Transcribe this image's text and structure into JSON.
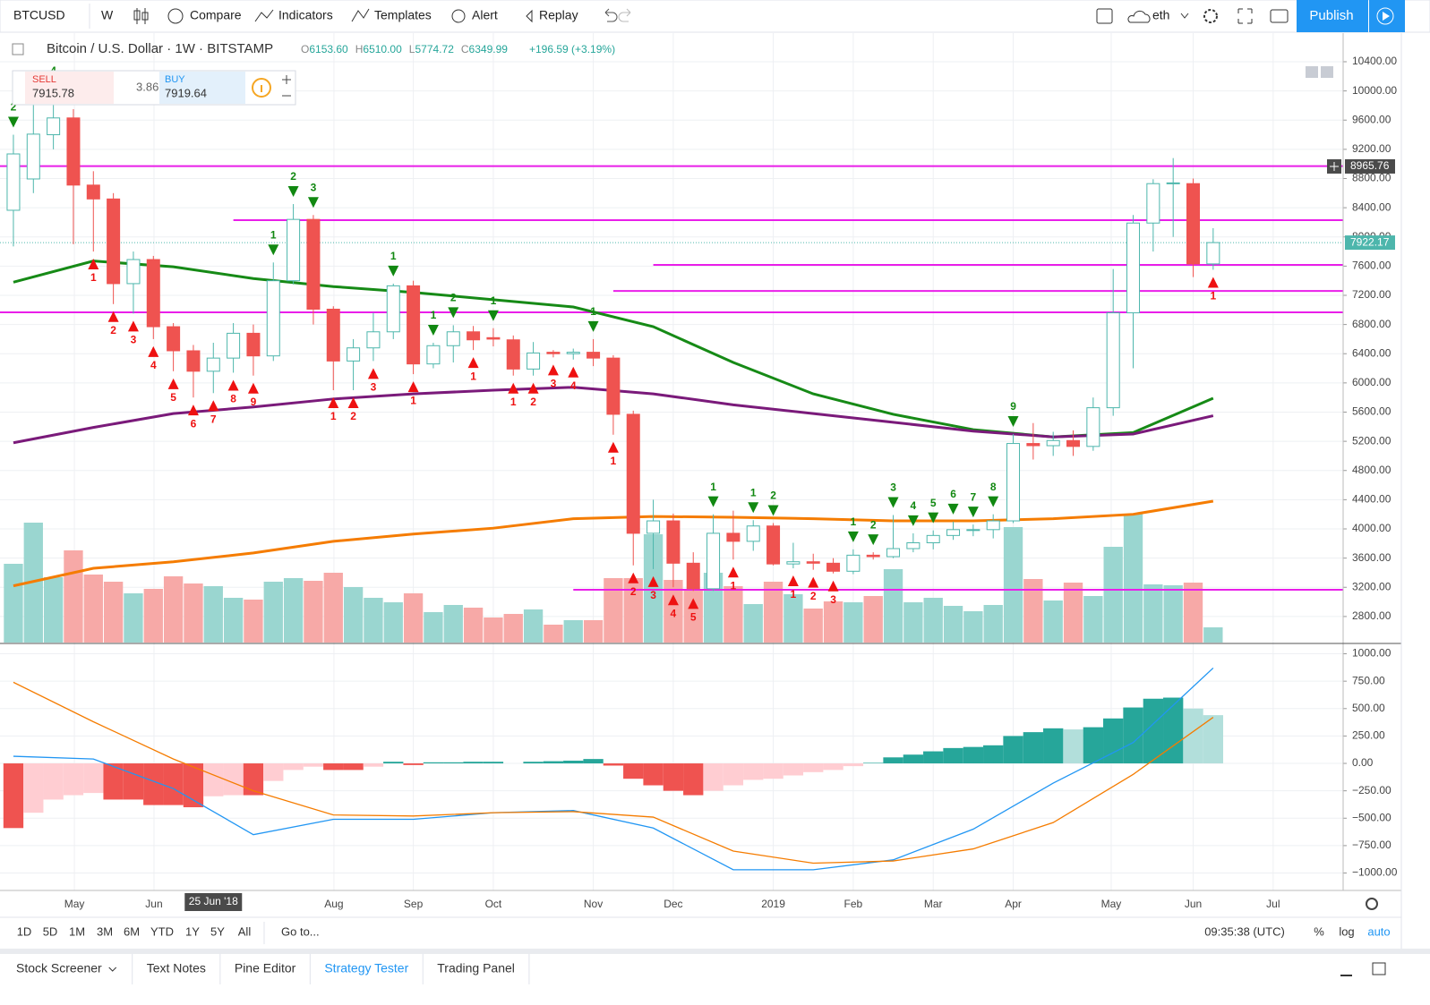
{
  "toolbar": {
    "symbol": "BTCUSD",
    "interval": "W",
    "compare": "Compare",
    "indicators": "Indicators",
    "templates": "Templates",
    "alert": "Alert",
    "replay": "Replay",
    "layout": "eth",
    "publish": "Publish"
  },
  "legend": {
    "title": "Bitcoin / U.S. Dollar · 1W · BITSTAMP",
    "ohlc": [
      {
        "key": "O",
        "value": "6153.60"
      },
      {
        "key": "H",
        "value": "6510.00"
      },
      {
        "key": "L",
        "value": "5774.72"
      },
      {
        "key": "C",
        "value": "6349.99"
      }
    ],
    "change": "+196.59 (+3.19%)"
  },
  "trade": {
    "sell_label": "SELL",
    "sell_price": "7915.78",
    "spread": "3.86",
    "buy_label": "BUY",
    "buy_price": "7919.64"
  },
  "chart_data": {
    "type": "candlestick",
    "open": [
      8365,
      8794,
      9400,
      9630,
      8710,
      8520,
      7360,
      7690,
      6770,
      6440,
      6160,
      6340,
      6680,
      6370,
      7400,
      8240,
      7010,
      6300,
      6480,
      6700,
      7330,
      6260,
      6510,
      6700,
      6620,
      6590,
      6190,
      6420,
      6400,
      6420,
      6340,
      5570,
      3940,
      4110,
      3530,
      3180,
      3940,
      3830,
      4040,
      3520,
      3550,
      3530,
      3420,
      3640,
      3620,
      3730,
      3810,
      3910,
      3980,
      3990,
      4110,
      5170,
      5140,
      5210,
      5130,
      5660,
      6960,
      8190,
      8730,
      8730,
      7630
    ],
    "high": [
      9400,
      9900,
      9900,
      9750,
      8900,
      8600,
      7800,
      7740,
      6820,
      6520,
      6550,
      6820,
      6800,
      7650,
      8450,
      8300,
      7050,
      6600,
      6960,
      7360,
      7400,
      6550,
      6790,
      6780,
      6750,
      6650,
      6560,
      6450,
      6470,
      6600,
      6380,
      5620,
      4400,
      4210,
      3680,
      4200,
      4250,
      4120,
      4080,
      3810,
      3660,
      3600,
      3720,
      3680,
      4190,
      3940,
      3980,
      4100,
      4060,
      4200,
      5300,
      5450,
      5330,
      5350,
      5800,
      7560,
      8300,
      8790,
      9080,
      8800,
      8120
    ],
    "low": [
      7870,
      8600,
      9200,
      7900,
      7800,
      7080,
      6950,
      6600,
      6160,
      5800,
      5860,
      6140,
      6100,
      6300,
      7350,
      6800,
      5900,
      5900,
      6300,
      6600,
      6120,
      6200,
      6280,
      6450,
      6500,
      6100,
      6100,
      6350,
      6320,
      6230,
      5290,
      3500,
      3450,
      3200,
      3150,
      3150,
      3580,
      3700,
      3500,
      3460,
      3440,
      3390,
      3380,
      3580,
      3600,
      3680,
      3720,
      3850,
      3900,
      3870,
      4080,
      4950,
      5000,
      5000,
      5070,
      5550,
      6200,
      7800,
      8000,
      7450,
      7550
    ],
    "close": [
      9137,
      9408,
      9630,
      8710,
      8520,
      7360,
      7690,
      6770,
      6440,
      6160,
      6340,
      6680,
      6370,
      7400,
      8240,
      7010,
      6300,
      6480,
      6700,
      7330,
      6260,
      6510,
      6700,
      6590,
      6600,
      6190,
      6410,
      6400,
      6420,
      6340,
      5570,
      3940,
      4110,
      3530,
      3180,
      3940,
      3830,
      4040,
      3520,
      3550,
      3530,
      3420,
      3640,
      3620,
      3730,
      3810,
      3910,
      3990,
      3990,
      4110,
      5170,
      5140,
      5210,
      5130,
      5660,
      6960,
      8190,
      8730,
      8740,
      7630,
      7922.17
    ],
    "volume": [
      88,
      134,
      73,
      103,
      76,
      68,
      55,
      60,
      74,
      66,
      63,
      50,
      48,
      68,
      72,
      69,
      78,
      62,
      50,
      45,
      55,
      34,
      42,
      39,
      28,
      32,
      37,
      20,
      25,
      25,
      72,
      72,
      121,
      70,
      58,
      78,
      63,
      43,
      68,
      54,
      38,
      46,
      45,
      52,
      82,
      45,
      50,
      41,
      35,
      42,
      129,
      71,
      47,
      67,
      52,
      107,
      144,
      65,
      64,
      67,
      17
    ],
    "vlim": [
      0,
      681
    ],
    "up_color": "#4db6ac",
    "down_color": "#ef5350",
    "volume_up_color": "#9ad6d0",
    "volume_down_color": "#f7a9a7",
    "xlim": [
      -0.67,
      66.5
    ],
    "ylim": [
      2443,
      10792
    ],
    "xticks": [
      {
        "value": 3.05,
        "label": "May"
      },
      {
        "value": 7.03,
        "label": "Jun"
      },
      {
        "value": 16.03,
        "label": "Aug"
      },
      {
        "value": 20,
        "label": "Sep"
      },
      {
        "value": 24,
        "label": "Oct"
      },
      {
        "value": 29,
        "label": "Nov"
      },
      {
        "value": 33,
        "label": "Dec"
      },
      {
        "value": 38,
        "label": "2019"
      },
      {
        "value": 42,
        "label": "Feb"
      },
      {
        "value": 46,
        "label": "Mar"
      },
      {
        "value": 50,
        "label": "Apr"
      },
      {
        "value": 54.9,
        "label": "May"
      },
      {
        "value": 59,
        "label": "Jun"
      },
      {
        "value": 63,
        "label": "Jul"
      }
    ],
    "yticks": [
      {
        "value": 10400,
        "label": "10400.00"
      },
      {
        "value": 10000,
        "label": "10000.00"
      },
      {
        "value": 9600,
        "label": "9600.00"
      },
      {
        "value": 9200,
        "label": "9200.00"
      },
      {
        "value": 8800,
        "label": "8800.00"
      },
      {
        "value": 8400,
        "label": "8400.00"
      },
      {
        "value": 8000,
        "label": "8000.00"
      },
      {
        "value": 7600,
        "label": "7600.00"
      },
      {
        "value": 7200,
        "label": "7200.00"
      },
      {
        "value": 6800,
        "label": "6800.00"
      },
      {
        "value": 6400,
        "label": "6400.00"
      },
      {
        "value": 6000,
        "label": "6000.00"
      },
      {
        "value": 5600,
        "label": "5600.00"
      },
      {
        "value": 5200,
        "label": "5200.00"
      },
      {
        "value": 4800,
        "label": "4800.00"
      },
      {
        "value": 4400,
        "label": "4400.00"
      },
      {
        "value": 4000,
        "label": "4000.00"
      },
      {
        "value": 3600,
        "label": "3600.00"
      },
      {
        "value": 3200,
        "label": "3200.00"
      },
      {
        "value": 2800,
        "label": "2800.00"
      }
    ],
    "grid": true,
    "crosshair_x": {
      "value": 10,
      "label": "25 Jun '18"
    },
    "crosshair_y": {
      "value": 8965.76,
      "label": "8965.76"
    },
    "last_price": {
      "value": 7922.17,
      "label": "7922.17"
    },
    "level_color": "#e91ee9",
    "levels": [
      {
        "value": 8970
      },
      {
        "value": 8230,
        "from": 11
      },
      {
        "value": 7617,
        "from": 32
      },
      {
        "value": 7260,
        "from": 30
      },
      {
        "value": 6967
      },
      {
        "value": 3167,
        "from": 28
      }
    ],
    "moving_averages": [
      {
        "color": "#168a16",
        "x": [
          0,
          4,
          8,
          12,
          16,
          20,
          24,
          28,
          32,
          36,
          40,
          44,
          48,
          52,
          56,
          60
        ],
        "values": [
          7380,
          7670,
          7590,
          7430,
          7320,
          7240,
          7140,
          7040,
          6770,
          6280,
          5850,
          5570,
          5360,
          5260,
          5320,
          5790
        ]
      },
      {
        "color": "#7a1a7a",
        "x": [
          0,
          4,
          8,
          12,
          16,
          20,
          24,
          28,
          32,
          36,
          40,
          44,
          48,
          52,
          56,
          60
        ],
        "values": [
          5180,
          5390,
          5580,
          5670,
          5780,
          5850,
          5900,
          5940,
          5850,
          5700,
          5580,
          5460,
          5340,
          5260,
          5300,
          5550
        ]
      },
      {
        "color": "#f57c00",
        "x": [
          0,
          4,
          8,
          12,
          16,
          20,
          24,
          28,
          32,
          36,
          40,
          44,
          48,
          52,
          56,
          60
        ],
        "values": [
          3220,
          3460,
          3550,
          3670,
          3830,
          3930,
          4010,
          4140,
          4170,
          4160,
          4140,
          4110,
          4110,
          4140,
          4200,
          4380
        ]
      }
    ],
    "td_setups": [
      {
        "side": "above",
        "color": "#118811",
        "marks": [
          {
            "x": 0,
            "label": "2"
          },
          {
            "x": 2,
            "label": "4"
          },
          {
            "x": 13,
            "label": "1"
          },
          {
            "x": 14,
            "label": "2"
          },
          {
            "x": 15,
            "label": "3"
          },
          {
            "x": 19,
            "label": "1"
          },
          {
            "x": 21,
            "label": "1"
          },
          {
            "x": 22,
            "label": "2"
          },
          {
            "x": 24,
            "label": "1"
          },
          {
            "x": 29,
            "label": "1"
          },
          {
            "x": 35,
            "label": "1"
          },
          {
            "x": 37,
            "label": "1"
          },
          {
            "x": 38,
            "label": "2"
          },
          {
            "x": 42,
            "label": "1"
          },
          {
            "x": 43,
            "label": "2"
          },
          {
            "x": 44,
            "label": "3"
          },
          {
            "x": 45,
            "label": "4"
          },
          {
            "x": 46,
            "label": "5"
          },
          {
            "x": 47,
            "label": "6"
          },
          {
            "x": 48,
            "label": "7"
          },
          {
            "x": 49,
            "label": "8"
          },
          {
            "x": 50,
            "label": "9"
          }
        ]
      },
      {
        "side": "below",
        "color": "#ee1111",
        "marks": [
          {
            "x": 4,
            "label": "1"
          },
          {
            "x": 5,
            "label": "2"
          },
          {
            "x": 6,
            "label": "3"
          },
          {
            "x": 7,
            "label": "4"
          },
          {
            "x": 8,
            "label": "5"
          },
          {
            "x": 9,
            "label": "6"
          },
          {
            "x": 10,
            "label": "7"
          },
          {
            "x": 11,
            "label": "8"
          },
          {
            "x": 12,
            "label": "9"
          },
          {
            "x": 16,
            "label": "1"
          },
          {
            "x": 17,
            "label": "2"
          },
          {
            "x": 18,
            "label": "3"
          },
          {
            "x": 20,
            "label": "1"
          },
          {
            "x": 23,
            "label": "1"
          },
          {
            "x": 25,
            "label": "1"
          },
          {
            "x": 26,
            "label": "2"
          },
          {
            "x": 27,
            "label": "3"
          },
          {
            "x": 28,
            "label": "4"
          },
          {
            "x": 30,
            "label": "1"
          },
          {
            "x": 31,
            "label": "2"
          },
          {
            "x": 32,
            "label": "3"
          },
          {
            "x": 33,
            "label": "4"
          },
          {
            "x": 34,
            "label": "5"
          },
          {
            "x": 36,
            "label": "1"
          },
          {
            "x": 39,
            "label": "1"
          },
          {
            "x": 40,
            "label": "2"
          },
          {
            "x": 41,
            "label": "3"
          },
          {
            "x": 60,
            "label": "1"
          }
        ]
      }
    ],
    "macd": {
      "ylim": [
        -1159,
        1086
      ],
      "yticks": [
        {
          "value": 1000,
          "label": "1000.00"
        },
        {
          "value": 750,
          "label": "750.00"
        },
        {
          "value": 500,
          "label": "500.00"
        },
        {
          "value": 250,
          "label": "250.00"
        },
        {
          "value": 0,
          "label": "0.00"
        },
        {
          "value": -250,
          "label": "−250.00"
        },
        {
          "value": -500,
          "label": "−500.00"
        },
        {
          "value": -750,
          "label": "−750.00"
        },
        {
          "value": -1000,
          "label": "−1000.00"
        }
      ],
      "histogram": [
        -590,
        -450,
        -330,
        -290,
        -270,
        -330,
        -330,
        -380,
        -380,
        -400,
        -300,
        -290,
        -290,
        -160,
        -60,
        -30,
        -60,
        -60,
        -30,
        15,
        -15,
        10,
        10,
        15,
        15,
        0,
        15,
        20,
        25,
        40,
        -20,
        -140,
        -200,
        -250,
        -290,
        -250,
        -200,
        -150,
        -140,
        -110,
        -80,
        -60,
        -25,
        5,
        55,
        80,
        110,
        140,
        150,
        165,
        250,
        285,
        320,
        310,
        330,
        410,
        510,
        590,
        600,
        500,
        440
      ],
      "histogram_colors": [
        "#26a69a",
        "#b2dfdb",
        "#ef5350",
        "#ffcdd2"
      ],
      "lines": [
        {
          "color": "#2196f3",
          "x": [
            0,
            4,
            8,
            12,
            16,
            20,
            24,
            28,
            32,
            36,
            40,
            44,
            48,
            52,
            56,
            60
          ],
          "values": [
            65,
            40,
            -230,
            -650,
            -510,
            -510,
            -450,
            -430,
            -590,
            -970,
            -970,
            -880,
            -600,
            -180,
            190,
            870
          ]
        },
        {
          "color": "#f57c00",
          "x": [
            0,
            4,
            8,
            12,
            16,
            20,
            24,
            28,
            32,
            36,
            40,
            44,
            48,
            52,
            56,
            60
          ],
          "values": [
            740,
            380,
            40,
            -250,
            -470,
            -480,
            -450,
            -440,
            -490,
            -800,
            -910,
            -890,
            -780,
            -540,
            -100,
            420
          ]
        }
      ]
    }
  },
  "range_bar": {
    "ranges": [
      "1D",
      "5D",
      "1M",
      "3M",
      "6M",
      "YTD",
      "1Y",
      "5Y",
      "All"
    ],
    "goto": "Go to...",
    "clock": "09:35:38 (UTC)",
    "percent": "%",
    "log": "log",
    "auto": "auto"
  },
  "tabs": [
    "Stock Screener",
    "Text Notes",
    "Pine Editor",
    "Strategy Tester",
    "Trading Panel"
  ]
}
